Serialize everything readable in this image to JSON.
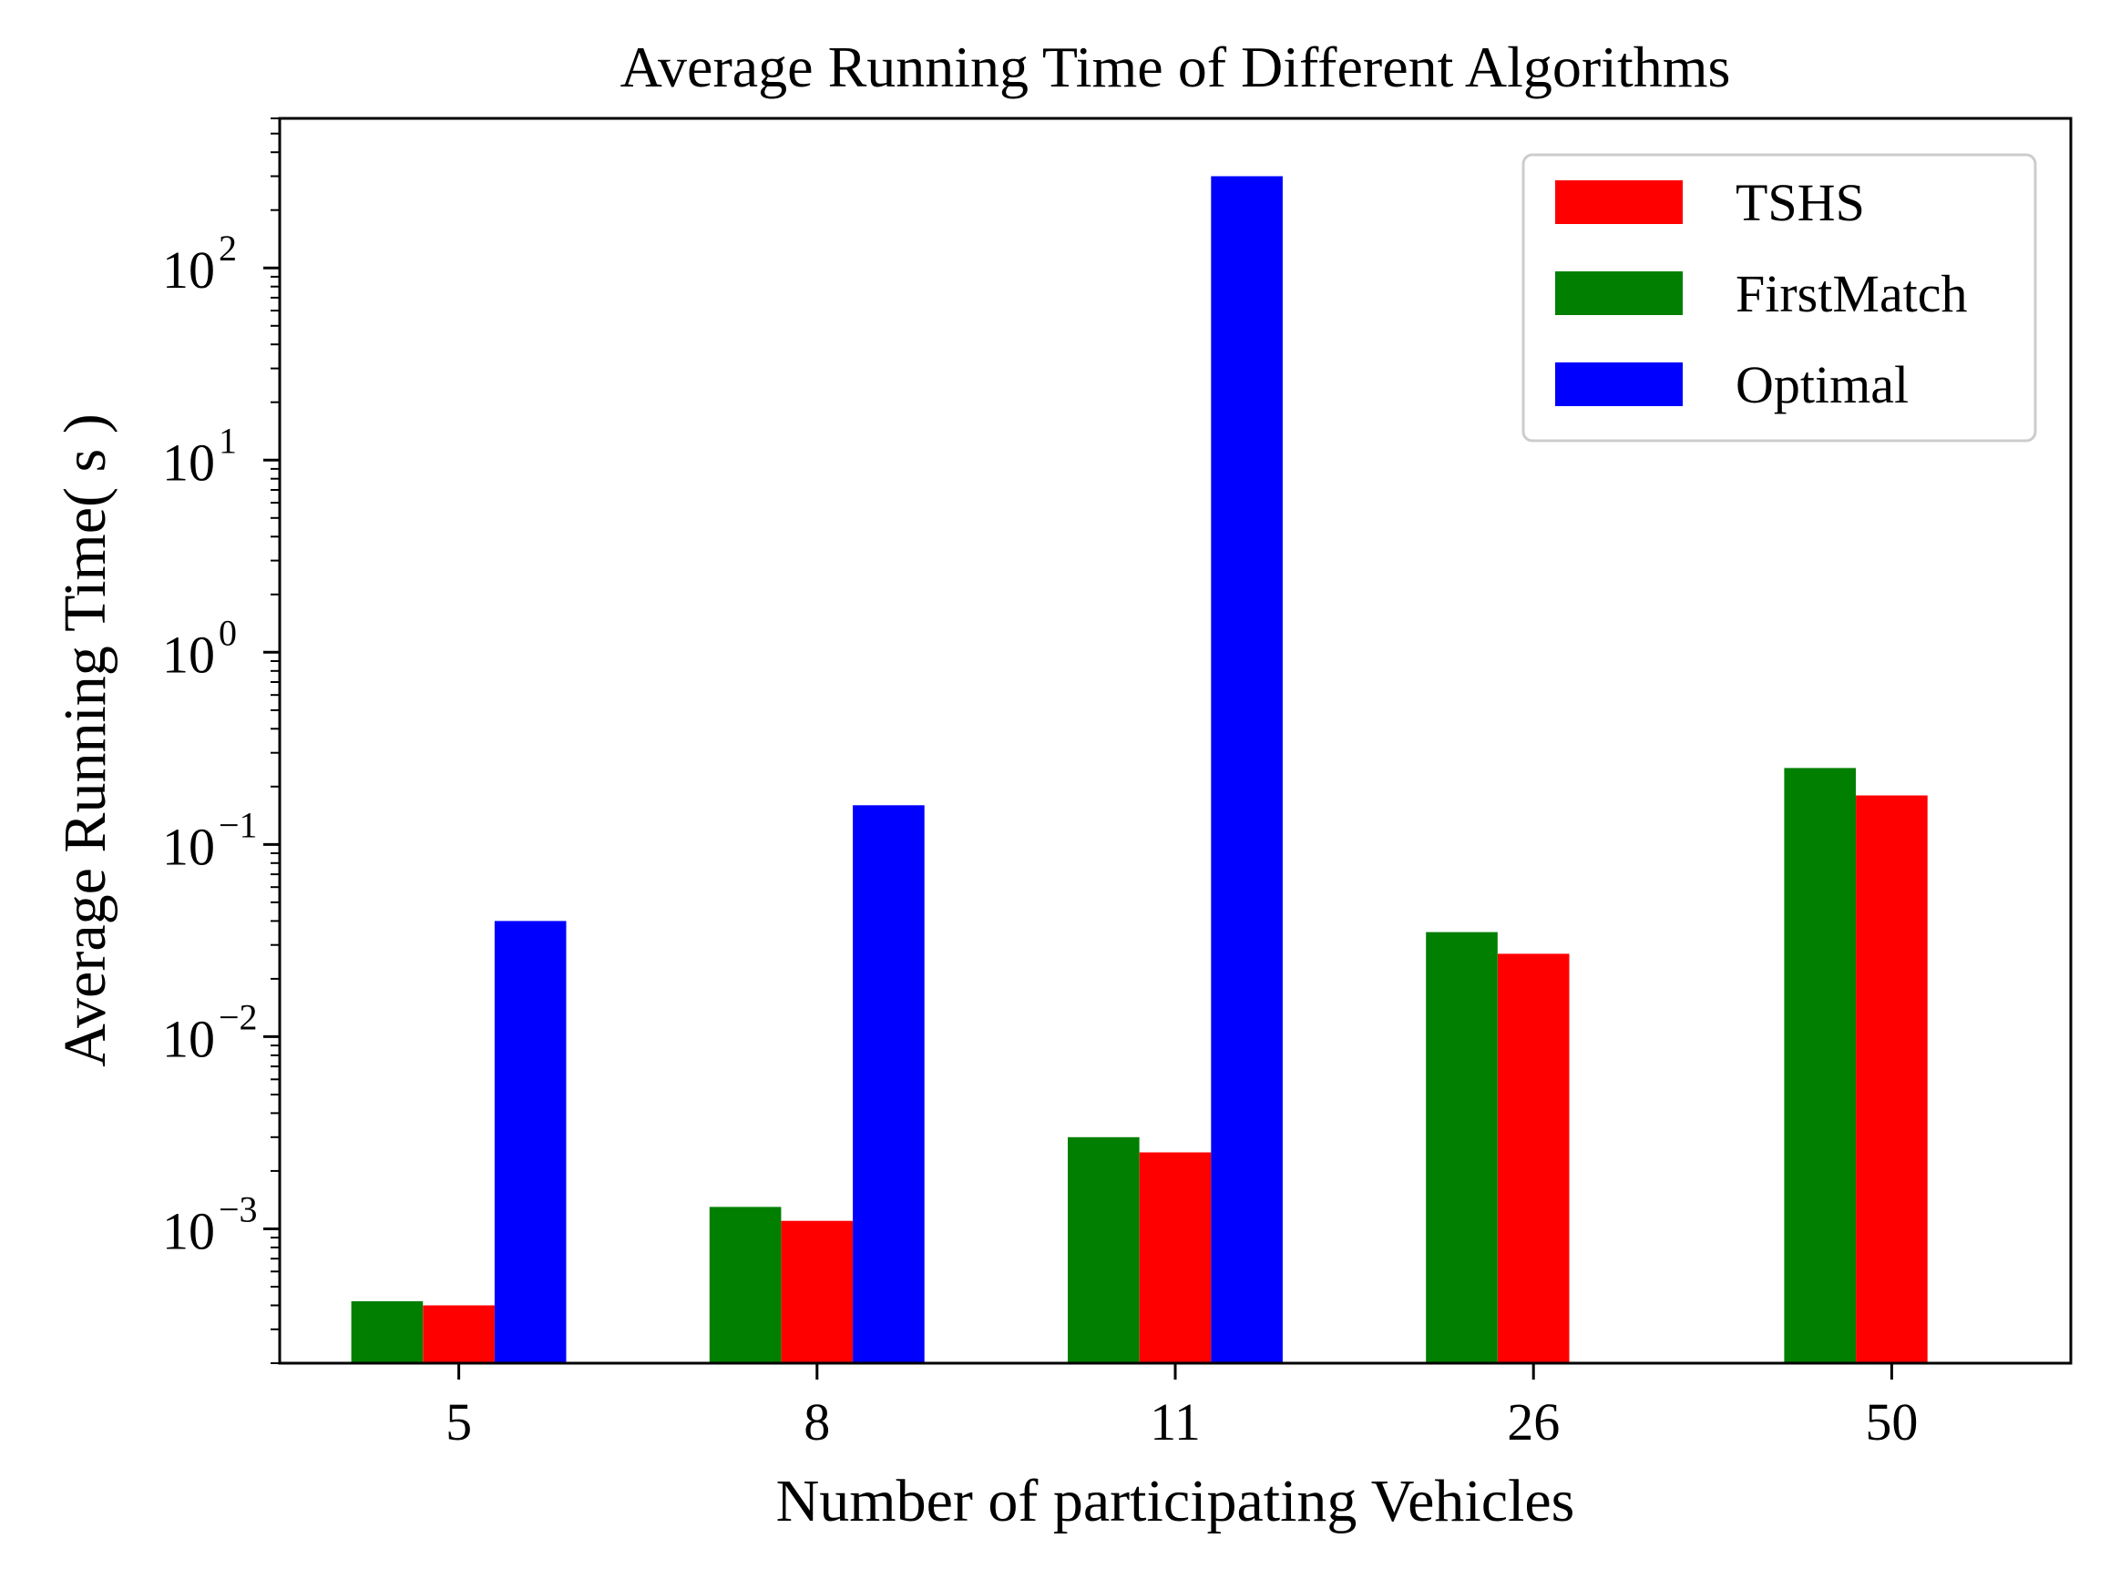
{
  "chart_data": {
    "type": "bar",
    "title": "Average Running Time of Different Algorithms",
    "xlabel": "Number of participating Vehicles",
    "ylabel": "Average Running Time( s )",
    "yscale": "log",
    "ylim": [
      0.0002,
      600
    ],
    "categories": [
      "5",
      "8",
      "11",
      "26",
      "50"
    ],
    "yticks": [
      {
        "value": 0.001,
        "base": "10",
        "exp": "−3"
      },
      {
        "value": 0.01,
        "base": "10",
        "exp": "−2"
      },
      {
        "value": 0.1,
        "base": "10",
        "exp": "−1"
      },
      {
        "value": 1,
        "base": "10",
        "exp": "0"
      },
      {
        "value": 10,
        "base": "10",
        "exp": "1"
      },
      {
        "value": 100,
        "base": "10",
        "exp": "2"
      }
    ],
    "bar_order": [
      "FirstMatch",
      "TSHS",
      "Optimal"
    ],
    "series": [
      {
        "name": "TSHS",
        "color": "#ff0000",
        "values": [
          0.0004,
          0.0011,
          0.0025,
          0.027,
          0.18
        ]
      },
      {
        "name": "FirstMatch",
        "color": "#007f00",
        "values": [
          0.00042,
          0.0013,
          0.003,
          0.035,
          0.25
        ]
      },
      {
        "name": "Optimal",
        "color": "#0000ff",
        "values": [
          0.04,
          0.16,
          300,
          null,
          null
        ]
      }
    ],
    "legend": {
      "position": "top-right",
      "entries": [
        "TSHS",
        "FirstMatch",
        "Optimal"
      ]
    },
    "grid": false
  }
}
